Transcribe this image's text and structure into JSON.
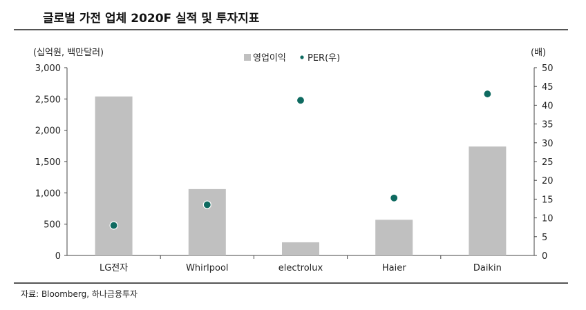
{
  "title": "글로벌 가전 업체 2020F 실적 및 투자지표",
  "source": "자료: Bloomberg, 하나금융투자",
  "colors": {
    "bar": "#c0c0c0",
    "dot": "#0e6a60",
    "axis": "#444444"
  },
  "chart_data": {
    "type": "bar",
    "categories": [
      "LG전자",
      "Whirlpool",
      "electrolux",
      "Haier",
      "Daikin"
    ],
    "series": [
      {
        "name": "영업이익",
        "type": "bar",
        "axis": "left",
        "values": [
          2540,
          1060,
          210,
          570,
          1740
        ]
      },
      {
        "name": "PER(우)",
        "type": "scatter",
        "axis": "right",
        "values": [
          8,
          13.5,
          41.3,
          15.3,
          43
        ]
      }
    ],
    "ylabel_left": "(십억원, 백만달러)",
    "ylabel_right": "(배)",
    "ylim_left": [
      0,
      3000
    ],
    "ylim_right": [
      0,
      50
    ],
    "yticks_left": [
      "0",
      "500",
      "1,000",
      "1,500",
      "2,000",
      "2,500",
      "3,000"
    ],
    "yticks_right": [
      "0",
      "5",
      "10",
      "15",
      "20",
      "25",
      "30",
      "35",
      "40",
      "45",
      "50"
    ],
    "legend": "top-center",
    "grid": false
  }
}
